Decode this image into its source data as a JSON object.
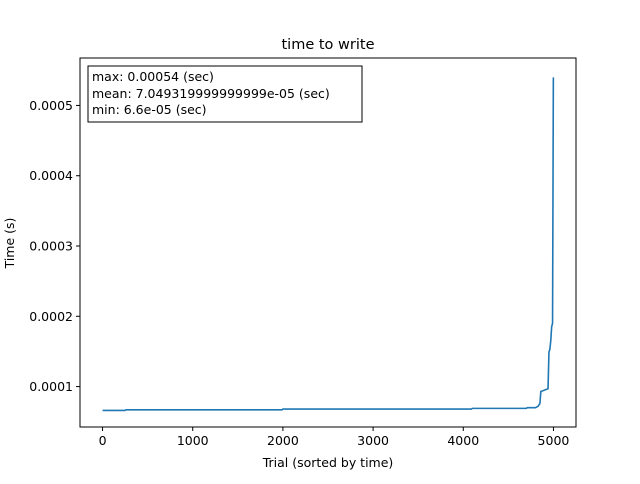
{
  "chart_data": {
    "type": "line",
    "title": "time to write",
    "xlabel": "Trial (sorted by time)",
    "ylabel": "Time (s)",
    "xlim": [
      -250,
      5250
    ],
    "ylim": [
      4.25e-05,
      0.0005675
    ],
    "xticks": [
      0,
      1000,
      2000,
      3000,
      4000,
      5000
    ],
    "xtick_labels": [
      "0",
      "1000",
      "2000",
      "3000",
      "4000",
      "5000"
    ],
    "yticks": [
      0.0001,
      0.0002,
      0.0003,
      0.0004,
      0.0005
    ],
    "ytick_labels": [
      "0.0001",
      "0.0002",
      "0.0003",
      "0.0004",
      "0.0005"
    ],
    "grid": false,
    "legend": "none",
    "annotation_box": {
      "position": "top-left",
      "lines": [
        "max: 0.00054 (sec)",
        "mean: 7.049319999999999e-05 (sec)",
        "min: 6.6e-05 (sec)"
      ]
    },
    "series": [
      {
        "color": "#1f77b4",
        "x": [
          0,
          250,
          260,
          1990,
          2000,
          4090,
          4100,
          4700,
          4710,
          4800,
          4830,
          4850,
          4860,
          4940,
          4950,
          4960,
          4970,
          4980,
          4990,
          4999
        ],
        "y": [
          6.6e-05,
          6.6e-05,
          6.7e-05,
          6.7e-05,
          6.8e-05,
          6.8e-05,
          6.9e-05,
          6.9e-05,
          7e-05,
          7e-05,
          7.2e-05,
          7.6e-05,
          9.3e-05,
          9.7e-05,
          0.000149,
          0.000153,
          0.000165,
          0.000185,
          0.00019,
          0.00054
        ]
      }
    ]
  }
}
